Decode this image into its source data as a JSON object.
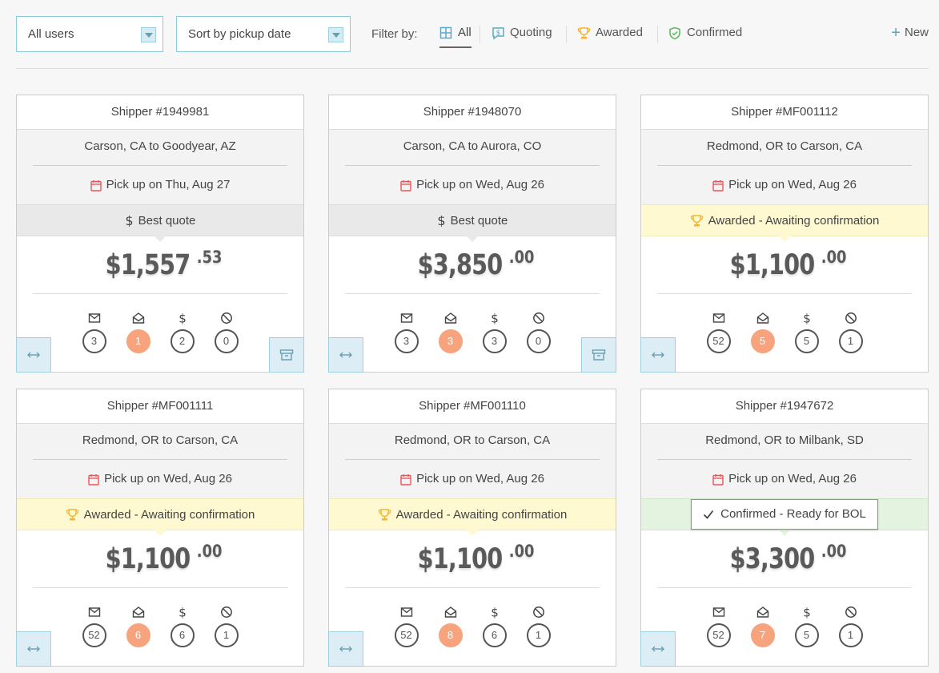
{
  "toolbar": {
    "user_select": "All users",
    "sort_select": "Sort by pickup date",
    "filter_label": "Filter by:",
    "filters": [
      {
        "label": "All",
        "icon": "grid-icon"
      },
      {
        "label": "Quoting",
        "icon": "quote-bubble-icon"
      },
      {
        "label": "Awarded",
        "icon": "trophy-icon"
      },
      {
        "label": "Confirmed",
        "icon": "shield-check-icon"
      }
    ],
    "new_label": "New"
  },
  "colors": {
    "accent": "#8ccbdd",
    "calendar": "#e8565b",
    "trophy": "#f2b632",
    "hot_badge": "#f7a47e",
    "confirmed": "#5cb85c"
  },
  "cards": [
    {
      "shipper": "Shipper #1949981",
      "route": "Carson, CA to Goodyear, AZ",
      "pickup": "Pick up on Thu, Aug 27",
      "status": "Best quote",
      "price_main": "$1,557",
      "price_cents": ".53",
      "counts": [
        "3",
        "1",
        "2",
        "0"
      ]
    },
    {
      "shipper": "Shipper #1948070",
      "route": "Carson, CA to Aurora, CO",
      "pickup": "Pick up on Wed, Aug 26",
      "status": "Best quote",
      "price_main": "$3,850",
      "price_cents": ".00",
      "counts": [
        "3",
        "3",
        "3",
        "0"
      ]
    },
    {
      "shipper": "Shipper #MF001112",
      "route": "Redmond, OR to Carson, CA",
      "pickup": "Pick up on Wed, Aug 26",
      "status": "Awarded - Awaiting confirmation",
      "price_main": "$1,100",
      "price_cents": ".00",
      "counts": [
        "52",
        "5",
        "5",
        "1"
      ]
    },
    {
      "shipper": "Shipper #MF001111",
      "route": "Redmond, OR to Carson, CA",
      "pickup": "Pick up on Wed, Aug 26",
      "status": "Awarded - Awaiting confirmation",
      "price_main": "$1,100",
      "price_cents": ".00",
      "counts": [
        "52",
        "6",
        "6",
        "1"
      ]
    },
    {
      "shipper": "Shipper #MF001110",
      "route": "Redmond, OR to Carson, CA",
      "pickup": "Pick up on Wed, Aug 26",
      "status": "Awarded - Awaiting confirmation",
      "price_main": "$1,100",
      "price_cents": ".00",
      "counts": [
        "52",
        "8",
        "6",
        "1"
      ]
    },
    {
      "shipper": "Shipper #1947672",
      "route": "Redmond, OR to Milbank, SD",
      "pickup": "Pick up on Wed, Aug 26",
      "status": "Confirmed - Ready for BOL",
      "price_main": "$3,300",
      "price_cents": ".00",
      "counts": [
        "52",
        "7",
        "5",
        "1"
      ]
    }
  ]
}
